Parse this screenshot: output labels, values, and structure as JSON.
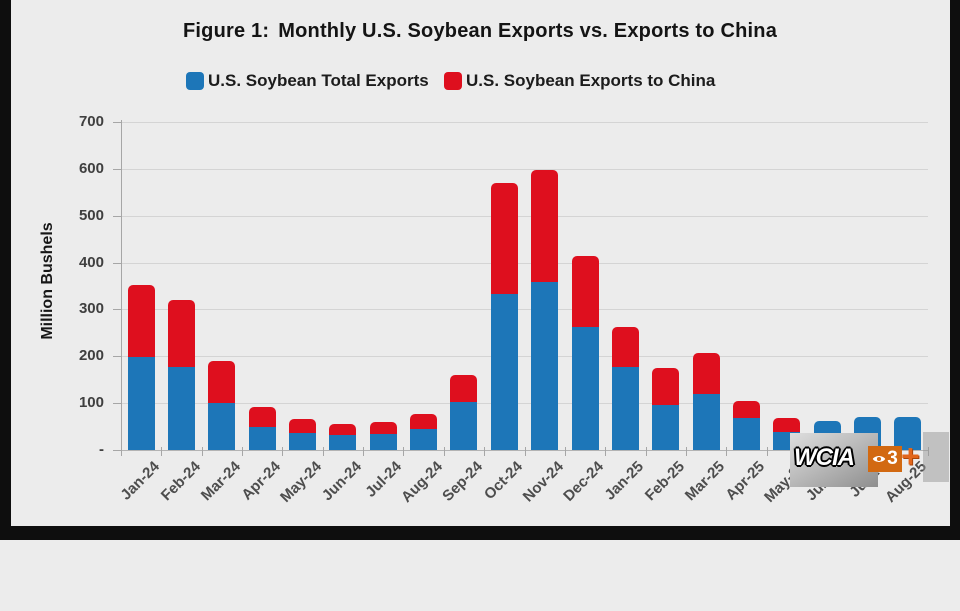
{
  "title": {
    "bold": "Figure 1:",
    "rest": "Monthly U.S. Soybean Exports vs. Exports to China"
  },
  "legend": [
    {
      "label": "U.S. Soybean Total Exports",
      "color": "#1d76b8"
    },
    {
      "label": "U.S. Soybean Exports to China",
      "color": "#de0f1e"
    }
  ],
  "watermark": {
    "station": "WCIA",
    "channel": "3",
    "plus": "+"
  },
  "chart_data": {
    "type": "bar",
    "stacked": true,
    "title": "Figure 1: Monthly U.S. Soybean Exports vs. Exports to China",
    "ylabel": "Million Bushels",
    "xlabel": "",
    "ylim": [
      0,
      700
    ],
    "grid": true,
    "legend_position": "top",
    "yticks": [
      {
        "value": 700,
        "label": "700"
      },
      {
        "value": 600,
        "label": "600"
      },
      {
        "value": 500,
        "label": "500"
      },
      {
        "value": 400,
        "label": "400"
      },
      {
        "value": 300,
        "label": "300"
      },
      {
        "value": 200,
        "label": "200"
      },
      {
        "value": 100,
        "label": "100"
      },
      {
        "value": 0,
        "label": "-"
      }
    ],
    "categories": [
      "Jan-24",
      "Feb-24",
      "Mar-24",
      "Apr-24",
      "May-24",
      "Jun-24",
      "Jul-24",
      "Aug-24",
      "Sep-24",
      "Oct-24",
      "Nov-24",
      "Dec-24",
      "Jan-25",
      "Feb-25",
      "Mar-25",
      "Apr-25",
      "May-25",
      "Jun-25",
      "Jul-25",
      "Aug-25"
    ],
    "series": [
      {
        "name": "U.S. Soybean Total Exports",
        "color": "#1d76b8",
        "values": [
          198,
          178,
          100,
          50,
          36,
          32,
          35,
          44,
          102,
          333,
          358,
          262,
          178,
          97,
          120,
          68,
          38,
          62,
          71,
          71
        ]
      },
      {
        "name": "U.S. Soybean Exports to China",
        "color": "#de0f1e",
        "values": [
          155,
          142,
          90,
          42,
          30,
          23,
          25,
          32,
          58,
          237,
          240,
          152,
          85,
          78,
          86,
          36,
          30,
          0,
          0,
          0
        ]
      }
    ],
    "stack_totals": [
      353,
      320,
      190,
      92,
      66,
      55,
      60,
      76,
      160,
      570,
      598,
      414,
      263,
      175,
      206,
      104,
      68,
      62,
      71,
      71
    ]
  }
}
